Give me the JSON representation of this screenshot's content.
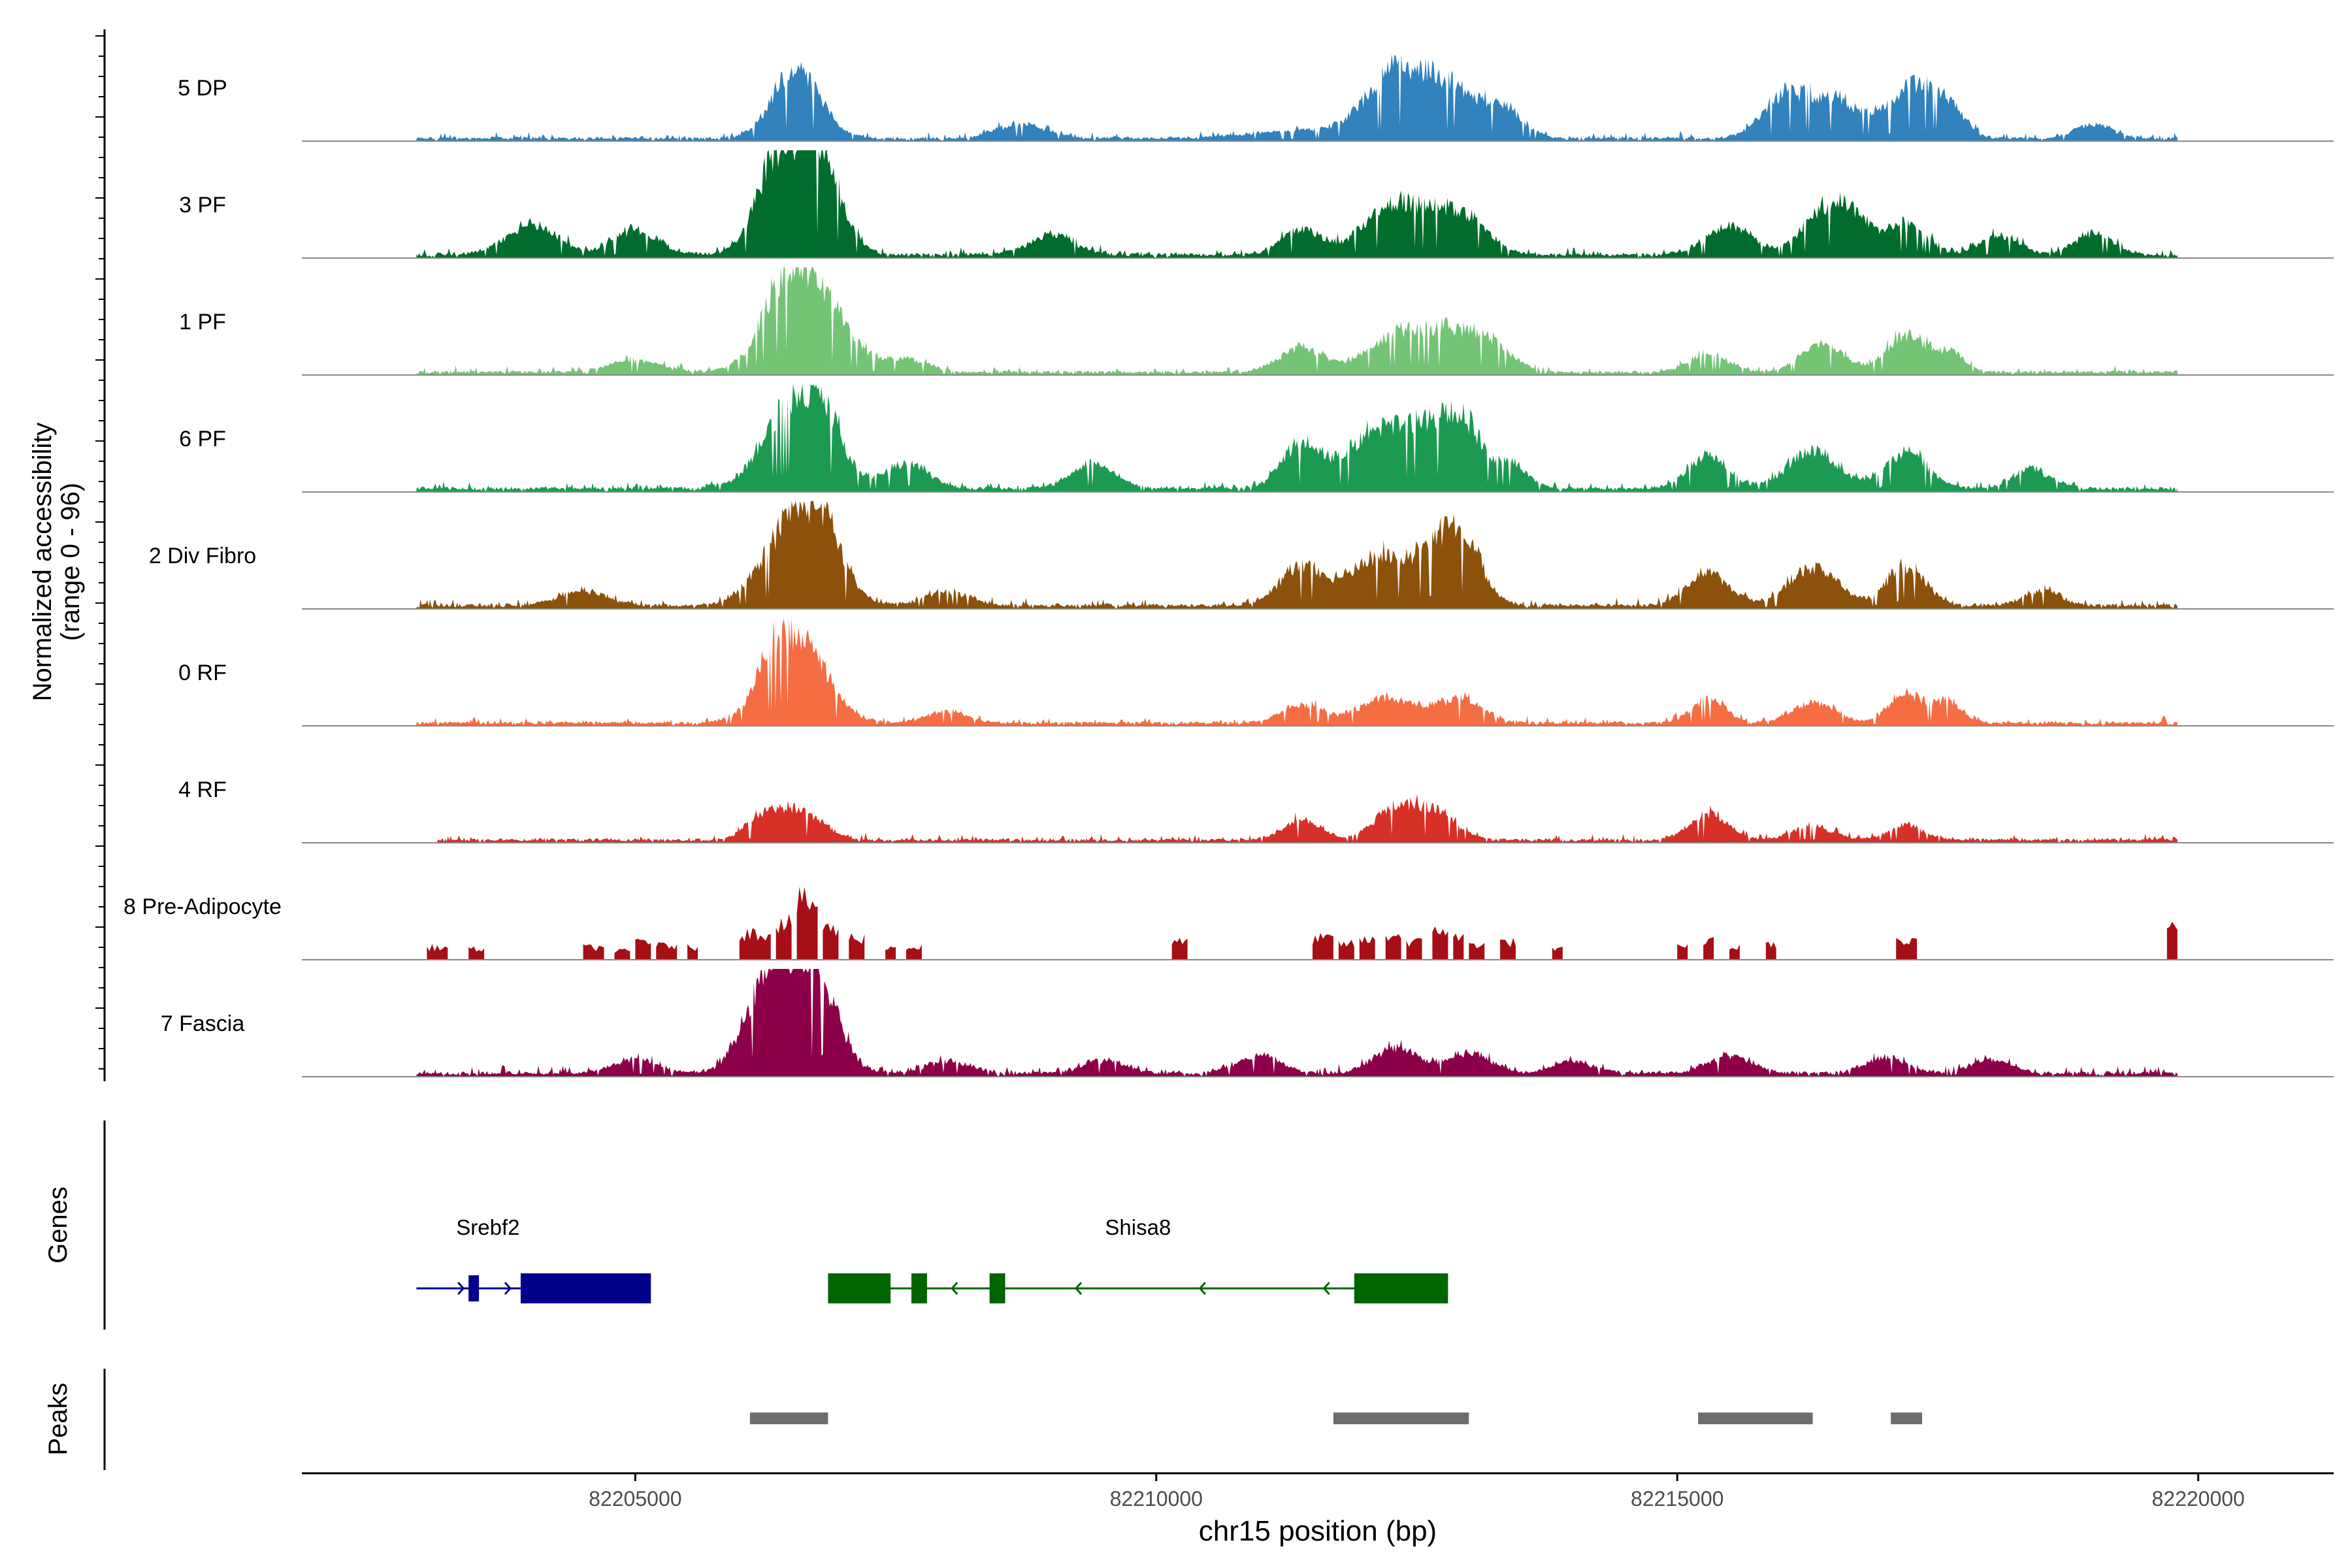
{
  "chart_data": {
    "type": "area",
    "title": "",
    "ylabel_line1": "Normalized accessibility",
    "ylabel_line2": "(range 0 - 96)",
    "xlabel": "chr15 position (bp)",
    "xlim": [
      82201800,
      82221300
    ],
    "ylim": [
      0,
      96
    ],
    "x_ticks": [
      82205000,
      82210000,
      82215000,
      82220000
    ],
    "x_tick_labels": [
      "82205000",
      "82210000",
      "82215000",
      "82220000"
    ],
    "tracks": [
      {
        "name": "5 DP",
        "color": "#3182bd",
        "range": [
          82202900,
          82219800
        ],
        "baseline": 2.5,
        "noise": 5,
        "peaks": [
          [
            82206550,
            70,
            14,
            18
          ],
          [
            82208700,
            15,
            18,
            8
          ],
          [
            82211450,
            8,
            40,
            8
          ],
          [
            82212300,
            65,
            18,
            16
          ],
          [
            82212800,
            45,
            16,
            14
          ],
          [
            82213300,
            30,
            16,
            10
          ],
          [
            82216000,
            35,
            14,
            14
          ],
          [
            82216500,
            40,
            20,
            14
          ],
          [
            82217250,
            50,
            14,
            14
          ],
          [
            82217600,
            30,
            12,
            10
          ],
          [
            82219000,
            15,
            14,
            6
          ]
        ]
      },
      {
        "name": "3 PF",
        "color": "#006d2c",
        "range": [
          82202900,
          82219800
        ],
        "baseline": 3,
        "noise": 6,
        "peaks": [
          [
            82206550,
            92,
            10,
            48
          ],
          [
            82206300,
            40,
            8,
            34
          ],
          [
            82206850,
            45,
            8,
            36
          ],
          [
            82204000,
            30,
            20,
            6
          ],
          [
            82205000,
            25,
            18,
            6
          ],
          [
            82209000,
            20,
            18,
            6
          ],
          [
            82211400,
            26,
            14,
            12
          ],
          [
            82212200,
            38,
            16,
            18
          ],
          [
            82212600,
            34,
            16,
            16
          ],
          [
            82213000,
            32,
            14,
            14
          ],
          [
            82215500,
            28,
            16,
            12
          ],
          [
            82216400,
            42,
            12,
            22
          ],
          [
            82216700,
            30,
            12,
            14
          ],
          [
            82217200,
            32,
            12,
            16
          ],
          [
            82218100,
            20,
            14,
            8
          ],
          [
            82219000,
            22,
            14,
            8
          ]
        ]
      },
      {
        "name": "1 PF",
        "color": "#74c476",
        "range": [
          82202900,
          82219800
        ],
        "baseline": 2.5,
        "noise": 5,
        "peaks": [
          [
            82206650,
            92,
            14,
            40
          ],
          [
            82206400,
            30,
            10,
            20
          ],
          [
            82205000,
            12,
            20,
            6
          ],
          [
            82207600,
            12,
            16,
            6
          ],
          [
            82211400,
            25,
            16,
            10
          ],
          [
            82212300,
            38,
            18,
            14
          ],
          [
            82212800,
            35,
            16,
            12
          ],
          [
            82213200,
            28,
            16,
            10
          ],
          [
            82215300,
            20,
            14,
            8
          ],
          [
            82216400,
            28,
            16,
            10
          ],
          [
            82217200,
            38,
            12,
            14
          ],
          [
            82217600,
            20,
            12,
            8
          ]
        ]
      },
      {
        "name": "6 PF",
        "color": "#1d9a51",
        "range": [
          82202900,
          82219800
        ],
        "baseline": 3,
        "noise": 6,
        "peaks": [
          [
            82206550,
            92,
            12,
            42
          ],
          [
            82206850,
            30,
            10,
            18
          ],
          [
            82207600,
            25,
            16,
            10
          ],
          [
            82209400,
            25,
            16,
            10
          ],
          [
            82211400,
            45,
            12,
            18
          ],
          [
            82212100,
            55,
            16,
            22
          ],
          [
            82212600,
            52,
            14,
            20
          ],
          [
            82212950,
            60,
            10,
            22
          ],
          [
            82213400,
            25,
            12,
            10
          ],
          [
            82215300,
            32,
            14,
            12
          ],
          [
            82216300,
            38,
            16,
            14
          ],
          [
            82217200,
            36,
            14,
            14
          ],
          [
            82218400,
            20,
            14,
            8
          ]
        ]
      },
      {
        "name": "2 Div Fibro",
        "color": "#8c510a",
        "range": [
          82202900,
          82219800
        ],
        "baseline": 3,
        "noise": 6,
        "peaks": [
          [
            82206550,
            90,
            12,
            44
          ],
          [
            82206850,
            35,
            10,
            20
          ],
          [
            82204500,
            16,
            18,
            6
          ],
          [
            82208000,
            14,
            18,
            6
          ],
          [
            82211400,
            40,
            14,
            16
          ],
          [
            82212100,
            45,
            16,
            18
          ],
          [
            82212650,
            48,
            14,
            20
          ],
          [
            82212950,
            58,
            10,
            24
          ],
          [
            82215300,
            32,
            14,
            12
          ],
          [
            82216300,
            38,
            16,
            14
          ],
          [
            82217200,
            40,
            12,
            16
          ],
          [
            82218500,
            15,
            14,
            6
          ]
        ]
      },
      {
        "name": "0 RF",
        "color": "#f46d43",
        "range": [
          82202900,
          82219800
        ],
        "baseline": 2.5,
        "noise": 5,
        "peaks": [
          [
            82206550,
            85,
            12,
            40
          ],
          [
            82206300,
            25,
            8,
            16
          ],
          [
            82208000,
            12,
            16,
            6
          ],
          [
            82211400,
            20,
            14,
            10
          ],
          [
            82212200,
            25,
            18,
            12
          ],
          [
            82212900,
            25,
            16,
            12
          ],
          [
            82215300,
            25,
            12,
            10
          ],
          [
            82216300,
            20,
            16,
            8
          ],
          [
            82217200,
            30,
            12,
            12
          ],
          [
            82217600,
            22,
            10,
            8
          ]
        ]
      },
      {
        "name": "4 RF",
        "color": "#d73027",
        "range": [
          82203100,
          82219800
        ],
        "baseline": 2.5,
        "noise": 5,
        "peaks": [
          [
            82206550,
            30,
            16,
            14
          ],
          [
            82206200,
            18,
            12,
            8
          ],
          [
            82211400,
            20,
            14,
            8
          ],
          [
            82212300,
            32,
            14,
            14
          ],
          [
            82212700,
            26,
            14,
            10
          ],
          [
            82215300,
            26,
            14,
            10
          ],
          [
            82216300,
            14,
            16,
            6
          ],
          [
            82217200,
            15,
            14,
            6
          ]
        ]
      },
      {
        "name": "8 Pre-Adipocyte",
        "color": "#a50f15",
        "range": [
          82201900,
          82220000
        ],
        "baseline": 0,
        "noise": 0,
        "sparse": true,
        "segments": [
          [
            82203000,
            82203200,
            14
          ],
          [
            82203400,
            82203550,
            12
          ],
          [
            82204500,
            82204700,
            14
          ],
          [
            82204800,
            82204950,
            10
          ],
          [
            82205000,
            82205150,
            22
          ],
          [
            82205200,
            82205400,
            16
          ],
          [
            82205500,
            82205600,
            14
          ],
          [
            82206000,
            82206300,
            30
          ],
          [
            82206350,
            82206500,
            42
          ],
          [
            82206550,
            82206750,
            65
          ],
          [
            82206800,
            82206950,
            35
          ],
          [
            82207050,
            82207200,
            25
          ],
          [
            82207400,
            82207500,
            14
          ],
          [
            82207600,
            82207750,
            14
          ],
          [
            82210150,
            82210300,
            20
          ],
          [
            82211500,
            82211700,
            24
          ],
          [
            82211750,
            82211900,
            18
          ],
          [
            82211950,
            82212100,
            22
          ],
          [
            82212200,
            82212350,
            28
          ],
          [
            82212400,
            82212550,
            20
          ],
          [
            82212650,
            82212800,
            35
          ],
          [
            82212850,
            82212950,
            25
          ],
          [
            82213000,
            82213150,
            18
          ],
          [
            82213300,
            82213450,
            20
          ],
          [
            82213800,
            82213900,
            12
          ],
          [
            82215000,
            82215100,
            14
          ],
          [
            82215250,
            82215350,
            22
          ],
          [
            82215500,
            82215600,
            14
          ],
          [
            82215850,
            82215950,
            18
          ],
          [
            82217100,
            82217300,
            20
          ],
          [
            82219700,
            82219800,
            35
          ]
        ]
      },
      {
        "name": "7 Fascia",
        "color": "#8c0049",
        "range": [
          82202900,
          82219800
        ],
        "baseline": 3,
        "noise": 6,
        "peaks": [
          [
            82206500,
            90,
            12,
            45
          ],
          [
            82206250,
            45,
            10,
            30
          ],
          [
            82206800,
            40,
            10,
            22
          ],
          [
            82205000,
            14,
            18,
            6
          ],
          [
            82208000,
            12,
            18,
            6
          ],
          [
            82209500,
            14,
            16,
            6
          ],
          [
            82211000,
            18,
            16,
            8
          ],
          [
            82212300,
            26,
            16,
            10
          ],
          [
            82213000,
            22,
            16,
            8
          ],
          [
            82214000,
            12,
            16,
            6
          ],
          [
            82215500,
            18,
            16,
            8
          ],
          [
            82217000,
            16,
            16,
            6
          ],
          [
            82218000,
            14,
            16,
            6
          ]
        ]
      }
    ],
    "genes_label": "Genes",
    "genes": [
      {
        "name": "Srebf2",
        "strand": "+",
        "color": "#00008b",
        "start": 82202900,
        "end": 82205150,
        "exons": [
          [
            82203400,
            82203500,
            "thin"
          ],
          [
            82203900,
            82205150,
            "thick"
          ]
        ]
      },
      {
        "name": "Shisa8",
        "strand": "-",
        "color": "#006400",
        "start": 82206850,
        "end": 82212800,
        "exons": [
          [
            82206850,
            82207450,
            "thick"
          ],
          [
            82207650,
            82207800,
            "thick"
          ],
          [
            82208400,
            82208550,
            "thick"
          ],
          [
            82211900,
            82212800,
            "thick"
          ]
        ]
      }
    ],
    "peaks_label": "Peaks",
    "peaks": [
      [
        82206100,
        82206850
      ],
      [
        82211700,
        82213000
      ],
      [
        82215200,
        82216300
      ],
      [
        82217050,
        82217350
      ]
    ],
    "peak_color": "#6e6e6e"
  }
}
